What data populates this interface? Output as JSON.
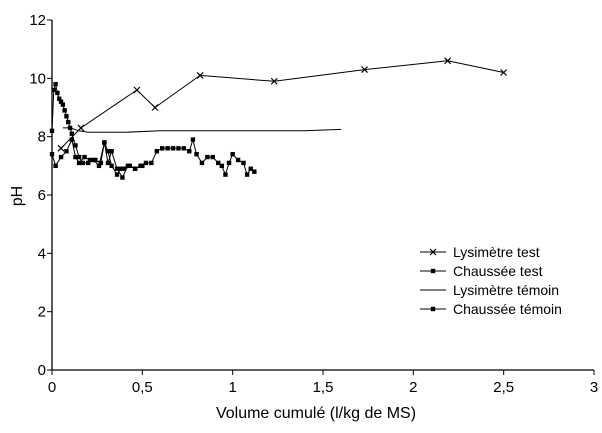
{
  "chart_data": {
    "type": "line",
    "title": "",
    "xlabel": "Volume cumulé (l/kg de MS)",
    "ylabel": "pH",
    "xlim": [
      0,
      3
    ],
    "ylim": [
      0,
      12
    ],
    "xticks": [
      0,
      0.5,
      1,
      1.5,
      2,
      2.5,
      3
    ],
    "xtick_labels": [
      "0",
      "0,5",
      "1",
      "1,5",
      "2",
      "2,5",
      "3"
    ],
    "yticks": [
      0,
      2,
      4,
      6,
      8,
      10,
      12
    ],
    "ytick_labels": [
      "0",
      "2",
      "4",
      "6",
      "8",
      "10",
      "12"
    ],
    "grid": false,
    "legend_position": "right",
    "series": [
      {
        "name": "Lysimètre test",
        "marker": "x",
        "x": [
          0.05,
          0.16,
          0.47,
          0.57,
          0.82,
          1.23,
          1.73,
          2.19,
          2.5
        ],
        "y": [
          7.6,
          8.3,
          9.6,
          9.0,
          10.1,
          9.9,
          10.3,
          10.6,
          10.2
        ]
      },
      {
        "name": "Chaussée test",
        "marker": "square",
        "x": [
          0.0,
          0.01,
          0.02,
          0.03,
          0.04,
          0.05,
          0.06,
          0.07,
          0.08,
          0.09,
          0.1,
          0.11,
          0.13,
          0.15,
          0.17,
          0.2,
          0.23,
          0.26,
          0.29,
          0.31,
          0.33,
          0.36,
          0.39,
          0.42,
          0.46,
          0.5
        ],
        "y": [
          8.2,
          9.6,
          9.8,
          9.5,
          9.3,
          9.2,
          9.1,
          8.9,
          8.7,
          8.5,
          8.3,
          8.1,
          7.7,
          7.3,
          7.1,
          7.1,
          7.2,
          7.0,
          7.8,
          7.1,
          7.5,
          6.9,
          6.6,
          7.0,
          6.9,
          7.0
        ]
      },
      {
        "name": "Lysimètre témoin",
        "marker": "none",
        "x": [
          0.06,
          0.1,
          0.15,
          0.2,
          0.4,
          0.6,
          0.8,
          1.0,
          1.2,
          1.4,
          1.6
        ],
        "y": [
          8.3,
          8.3,
          8.2,
          8.15,
          8.15,
          8.2,
          8.2,
          8.2,
          8.2,
          8.2,
          8.25
        ]
      },
      {
        "name": "Chaussée témoin",
        "marker": "square",
        "x": [
          0.0,
          0.02,
          0.05,
          0.08,
          0.11,
          0.13,
          0.15,
          0.18,
          0.21,
          0.24,
          0.27,
          0.29,
          0.31,
          0.33,
          0.36,
          0.38,
          0.4,
          0.43,
          0.46,
          0.49,
          0.52,
          0.55,
          0.58,
          0.61,
          0.64,
          0.67,
          0.7,
          0.73,
          0.76,
          0.78,
          0.8,
          0.83,
          0.86,
          0.89,
          0.92,
          0.94,
          0.96,
          0.98,
          1.0,
          1.03,
          1.06,
          1.08,
          1.1,
          1.12
        ],
        "y": [
          7.4,
          7.0,
          7.3,
          7.5,
          7.9,
          7.3,
          7.1,
          7.3,
          7.2,
          7.2,
          7.1,
          7.8,
          7.5,
          7.0,
          6.7,
          6.9,
          6.9,
          7.0,
          6.9,
          7.0,
          7.1,
          7.1,
          7.5,
          7.6,
          7.6,
          7.6,
          7.6,
          7.6,
          7.5,
          7.9,
          7.4,
          7.1,
          7.3,
          7.3,
          7.1,
          7.0,
          6.7,
          7.1,
          7.4,
          7.2,
          7.1,
          6.7,
          6.9,
          6.8
        ]
      }
    ]
  }
}
